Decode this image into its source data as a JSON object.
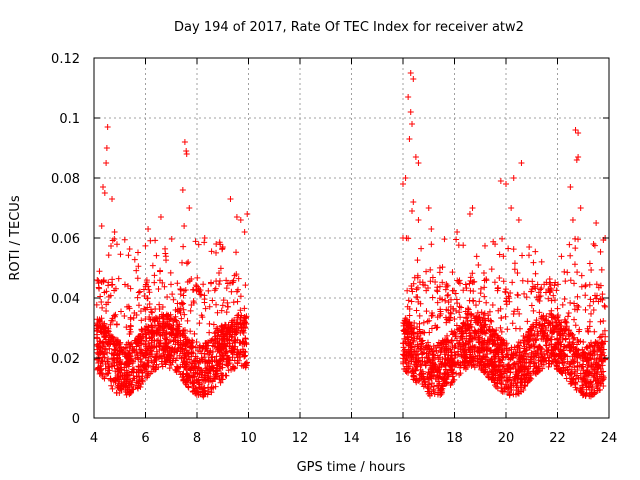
{
  "chart_data": {
    "type": "scatter",
    "title": "Day 194 of 2017, Rate Of TEC Index for receiver atw2",
    "xlabel": "GPS time / hours",
    "ylabel": "ROTI / TECUs",
    "xlim": [
      4,
      24
    ],
    "ylim": [
      0,
      0.12
    ],
    "xticks": [
      4,
      6,
      8,
      10,
      12,
      14,
      16,
      18,
      20,
      22,
      24
    ],
    "yticks": [
      0,
      0.02,
      0.04,
      0.06,
      0.08,
      0.1,
      0.12
    ],
    "ytick_labels": [
      "0",
      "0.02",
      "0.04",
      "0.06",
      "0.08",
      "0.1",
      "0.12"
    ],
    "grid": true,
    "legend": "none",
    "marker": "plus",
    "colors": {
      "points": "#ff0000"
    },
    "series": [
      {
        "values_description_free": true,
        "segments": [
          {
            "x_range": [
              4.1,
              9.95
            ],
            "typical_y": [
              0.005,
              0.045
            ]
          },
          {
            "x_range": [
              16.0,
              23.85
            ],
            "typical_y": [
              0.005,
              0.05
            ]
          }
        ],
        "points": [
          [
            4.53,
            0.097
          ],
          [
            4.5,
            0.09
          ],
          [
            4.47,
            0.085
          ],
          [
            4.35,
            0.077
          ],
          [
            4.42,
            0.075
          ],
          [
            4.7,
            0.073
          ],
          [
            4.3,
            0.064
          ],
          [
            4.8,
            0.062
          ],
          [
            7.53,
            0.092
          ],
          [
            7.58,
            0.089
          ],
          [
            7.6,
            0.088
          ],
          [
            7.45,
            0.076
          ],
          [
            7.7,
            0.07
          ],
          [
            7.5,
            0.064
          ],
          [
            6.6,
            0.067
          ],
          [
            6.1,
            0.063
          ],
          [
            8.3,
            0.06
          ],
          [
            9.3,
            0.073
          ],
          [
            9.55,
            0.067
          ],
          [
            9.7,
            0.066
          ],
          [
            9.95,
            0.068
          ],
          [
            9.85,
            0.062
          ],
          [
            9.0,
            0.057
          ],
          [
            16.3,
            0.115
          ],
          [
            16.4,
            0.113
          ],
          [
            16.2,
            0.107
          ],
          [
            16.3,
            0.102
          ],
          [
            16.35,
            0.098
          ],
          [
            16.25,
            0.093
          ],
          [
            16.5,
            0.087
          ],
          [
            16.6,
            0.085
          ],
          [
            16.1,
            0.08
          ],
          [
            16.0,
            0.078
          ],
          [
            16.4,
            0.072
          ],
          [
            16.35,
            0.069
          ],
          [
            16.6,
            0.066
          ],
          [
            16.0,
            0.06
          ],
          [
            17.0,
            0.07
          ],
          [
            17.1,
            0.063
          ],
          [
            18.6,
            0.068
          ],
          [
            18.7,
            0.07
          ],
          [
            18.1,
            0.062
          ],
          [
            19.8,
            0.079
          ],
          [
            20.0,
            0.078
          ],
          [
            20.3,
            0.08
          ],
          [
            20.2,
            0.07
          ],
          [
            20.6,
            0.085
          ],
          [
            20.5,
            0.066
          ],
          [
            20.9,
            0.057
          ],
          [
            22.7,
            0.096
          ],
          [
            22.8,
            0.095
          ],
          [
            22.8,
            0.087
          ],
          [
            22.75,
            0.086
          ],
          [
            22.5,
            0.077
          ],
          [
            22.9,
            0.07
          ],
          [
            22.6,
            0.066
          ],
          [
            23.5,
            0.065
          ],
          [
            23.85,
            0.06
          ],
          [
            23.4,
            0.058
          ]
        ]
      }
    ]
  }
}
